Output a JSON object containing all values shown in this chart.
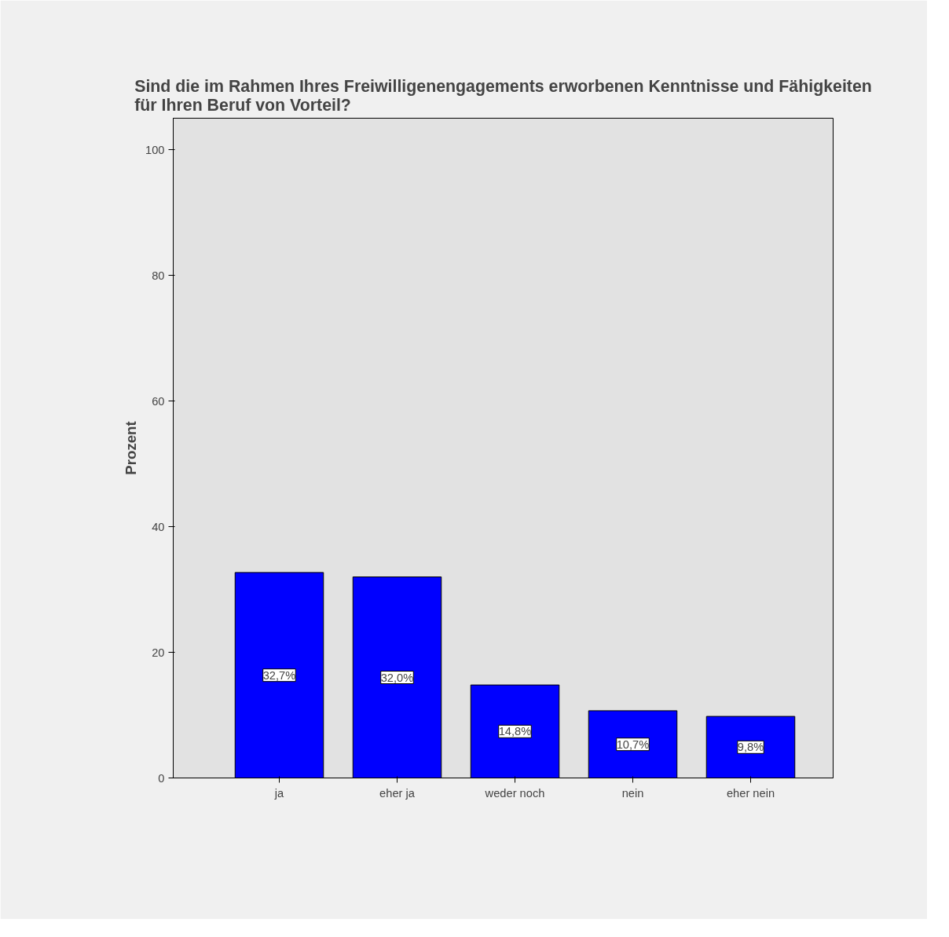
{
  "chart_data": {
    "type": "bar",
    "title": "Sind die im Rahmen Ihres Freiwilligenengagements erworbenen Kenntnisse und Fähigkeiten\nfür Ihren Beruf von Vorteil?",
    "ylabel": "Prozent",
    "categories": [
      "ja",
      "eher ja",
      "weder noch",
      "nein",
      "eher nein"
    ],
    "values": [
      32.7,
      32.0,
      14.8,
      10.7,
      9.8
    ],
    "value_labels": [
      "32,7%",
      "32,0%",
      "14,8%",
      "10,7%",
      "9,8%"
    ],
    "color": "#0000ff",
    "ylim": [
      0,
      105
    ],
    "yticks": [
      0,
      20,
      40,
      60,
      80,
      100
    ],
    "grid": false
  }
}
